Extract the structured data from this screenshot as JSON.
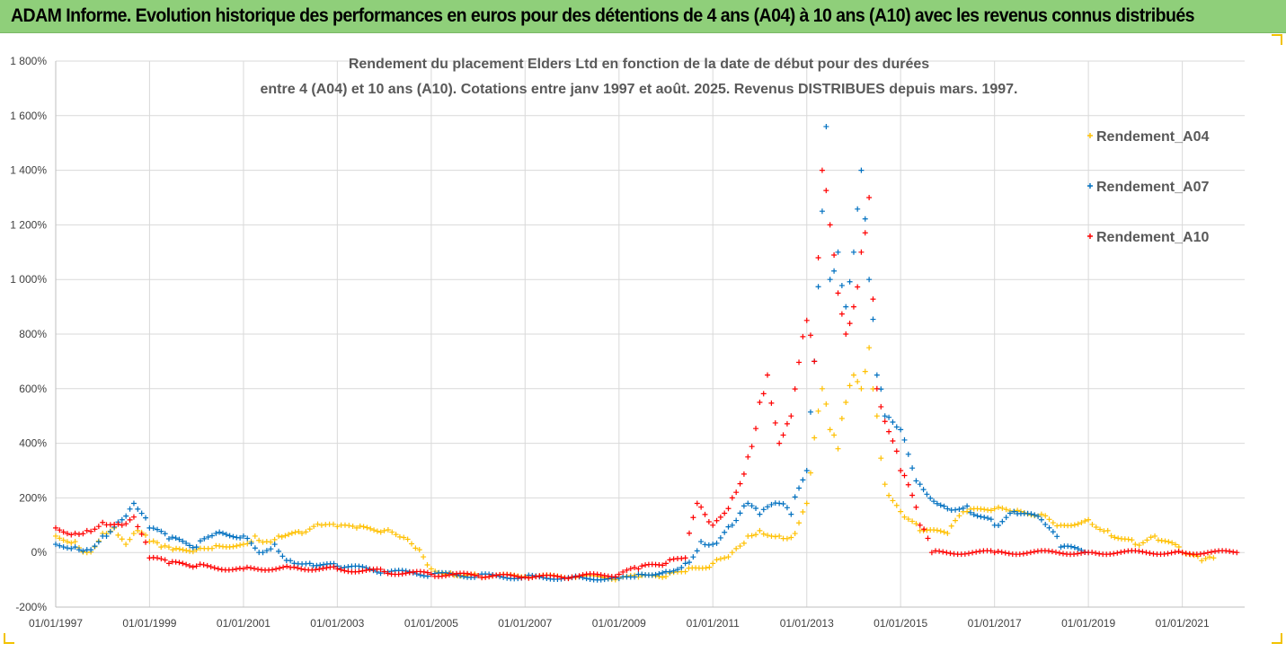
{
  "banner": {
    "title": "ADAM Informe. Evolution historique des performances en euros pour des détentions de 4 ans (A04) à 10 ans (A10) avec les revenus connus distribués"
  },
  "colors": {
    "banner_bg": "#8fcf7a",
    "A04": "#ffc000",
    "A07": "#0070c0",
    "A10": "#ff0000",
    "gridline": "#d9d9d9"
  },
  "chart_data": {
    "type": "scatter",
    "title_lines": [
      "Rendement du placement Elders Ltd en fonction de la date de début pour des durées",
      "entre 4 (A04) et 10 ans (A10). Cotations entre janv 1997 et août. 2025. Revenus DISTRIBUES depuis mars. 1997."
    ],
    "xlabel": "",
    "ylabel": "",
    "ylim": [
      -200,
      1800
    ],
    "yticks": [
      -200,
      0,
      200,
      400,
      600,
      800,
      1000,
      1200,
      1400,
      1600,
      1800
    ],
    "ytick_labels": [
      "-200%",
      "0%",
      "200%",
      "400%",
      "600%",
      "800%",
      "1 000%",
      "1 200%",
      "1 400%",
      "1 600%",
      "1 800%"
    ],
    "xlim": [
      "1997-01-01",
      "2022-05-01"
    ],
    "xticks": [
      "1997-01-01",
      "1999-01-01",
      "2001-01-01",
      "2003-01-01",
      "2005-01-01",
      "2007-01-01",
      "2009-01-01",
      "2011-01-01",
      "2013-01-01",
      "2015-01-01",
      "2017-01-01",
      "2019-01-01",
      "2021-01-01"
    ],
    "xtick_labels": [
      "01/01/1997",
      "01/01/1999",
      "01/01/2001",
      "01/01/2003",
      "01/01/2005",
      "01/01/2007",
      "01/01/2009",
      "01/01/2011",
      "01/01/2013",
      "01/01/2015",
      "01/01/2017",
      "01/01/2019",
      "01/01/2021"
    ],
    "grid": true,
    "legend_position": "right",
    "marker": "+",
    "series": [
      {
        "name": "Rendement_A04",
        "color": "#ffc000",
        "points": [
          [
            "1997-01-01",
            60
          ],
          [
            "1997-06-01",
            40
          ],
          [
            "1997-09-01",
            0
          ],
          [
            "1998-01-01",
            70
          ],
          [
            "1998-04-01",
            90
          ],
          [
            "1998-07-01",
            30
          ],
          [
            "1998-10-01",
            80
          ],
          [
            "1999-01-01",
            40
          ],
          [
            "1999-04-01",
            20
          ],
          [
            "1999-07-01",
            10
          ],
          [
            "2000-01-01",
            10
          ],
          [
            "2000-06-01",
            25
          ],
          [
            "2001-01-01",
            30
          ],
          [
            "2001-04-01",
            60
          ],
          [
            "2001-07-01",
            40
          ],
          [
            "2001-10-01",
            60
          ],
          [
            "2002-04-01",
            70
          ],
          [
            "2002-09-01",
            100
          ],
          [
            "2003-01-01",
            95
          ],
          [
            "2003-06-01",
            90
          ],
          [
            "2004-01-01",
            80
          ],
          [
            "2004-06-01",
            55
          ],
          [
            "2004-10-01",
            10
          ],
          [
            "2005-01-01",
            -60
          ],
          [
            "2005-06-01",
            -75
          ],
          [
            "2006-01-01",
            -85
          ],
          [
            "2007-01-01",
            -88
          ],
          [
            "2008-01-01",
            -90
          ],
          [
            "2009-01-01",
            -93
          ],
          [
            "2009-06-01",
            -90
          ],
          [
            "2010-01-01",
            -88
          ],
          [
            "2010-06-01",
            -70
          ],
          [
            "2011-01-01",
            -40
          ],
          [
            "2011-06-01",
            0
          ],
          [
            "2011-10-01",
            60
          ],
          [
            "2012-01-01",
            80
          ],
          [
            "2012-06-01",
            60
          ],
          [
            "2012-09-01",
            55
          ],
          [
            "2013-01-01",
            180
          ],
          [
            "2013-03-01",
            420
          ],
          [
            "2013-05-01",
            600
          ],
          [
            "2013-07-01",
            450
          ],
          [
            "2013-09-01",
            380
          ],
          [
            "2013-11-01",
            550
          ],
          [
            "2014-01-01",
            650
          ],
          [
            "2014-03-01",
            600
          ],
          [
            "2014-05-01",
            750
          ],
          [
            "2014-07-01",
            500
          ],
          [
            "2014-09-01",
            250
          ],
          [
            "2015-01-01",
            150
          ],
          [
            "2015-06-01",
            80
          ],
          [
            "2016-01-01",
            70
          ],
          [
            "2016-06-01",
            150
          ],
          [
            "2017-01-01",
            160
          ],
          [
            "2017-06-01",
            150
          ],
          [
            "2018-01-01",
            140
          ],
          [
            "2018-06-01",
            100
          ],
          [
            "2019-01-01",
            120
          ],
          [
            "2019-06-01",
            80
          ],
          [
            "2020-01-01",
            30
          ],
          [
            "2020-06-01",
            60
          ],
          [
            "2021-01-01",
            0
          ],
          [
            "2021-06-01",
            -30
          ],
          [
            "2021-09-01",
            -20
          ]
        ]
      },
      {
        "name": "Rendement_A07",
        "color": "#0070c0",
        "points": [
          [
            "1997-01-01",
            30
          ],
          [
            "1997-06-01",
            20
          ],
          [
            "1997-09-01",
            10
          ],
          [
            "1998-01-01",
            60
          ],
          [
            "1998-06-01",
            120
          ],
          [
            "1998-09-01",
            180
          ],
          [
            "1999-01-01",
            90
          ],
          [
            "1999-06-01",
            50
          ],
          [
            "2000-01-01",
            20
          ],
          [
            "2000-06-01",
            70
          ],
          [
            "2001-01-01",
            60
          ],
          [
            "2001-06-01",
            0
          ],
          [
            "2001-09-01",
            30
          ],
          [
            "2002-01-01",
            -30
          ],
          [
            "2002-06-01",
            -40
          ],
          [
            "2003-01-01",
            -50
          ],
          [
            "2004-01-01",
            -70
          ],
          [
            "2005-01-01",
            -80
          ],
          [
            "2006-01-01",
            -85
          ],
          [
            "2007-01-01",
            -90
          ],
          [
            "2008-01-01",
            -92
          ],
          [
            "2009-01-01",
            -95
          ],
          [
            "2009-06-01",
            -80
          ],
          [
            "2010-01-01",
            -70
          ],
          [
            "2010-06-01",
            -40
          ],
          [
            "2010-10-01",
            40
          ],
          [
            "2011-01-01",
            30
          ],
          [
            "2011-06-01",
            100
          ],
          [
            "2011-10-01",
            180
          ],
          [
            "2012-01-01",
            140
          ],
          [
            "2012-06-01",
            180
          ],
          [
            "2012-09-01",
            140
          ],
          [
            "2013-01-01",
            300
          ],
          [
            "2013-03-01",
            700
          ],
          [
            "2013-05-01",
            1250
          ],
          [
            "2013-06-01",
            1560
          ],
          [
            "2013-07-01",
            1000
          ],
          [
            "2013-09-01",
            1100
          ],
          [
            "2013-11-01",
            900
          ],
          [
            "2014-01-01",
            1100
          ],
          [
            "2014-03-01",
            1400
          ],
          [
            "2014-05-01",
            1000
          ],
          [
            "2014-07-01",
            650
          ],
          [
            "2014-09-01",
            500
          ],
          [
            "2015-01-01",
            450
          ],
          [
            "2015-06-01",
            250
          ],
          [
            "2016-01-01",
            160
          ],
          [
            "2016-06-01",
            170
          ],
          [
            "2017-01-01",
            100
          ],
          [
            "2017-06-01",
            150
          ],
          [
            "2018-01-01",
            120
          ],
          [
            "2018-06-01",
            20
          ],
          [
            "2019-01-01",
            0
          ]
        ]
      },
      {
        "name": "Rendement_A10",
        "color": "#ff0000",
        "points": [
          [
            "1997-01-01",
            90
          ],
          [
            "1997-06-01",
            70
          ],
          [
            "1997-09-01",
            80
          ],
          [
            "1998-01-01",
            110
          ],
          [
            "1998-06-01",
            100
          ],
          [
            "1998-09-01",
            130
          ],
          [
            "1999-01-01",
            -20
          ],
          [
            "1999-06-01",
            -40
          ],
          [
            "2000-01-01",
            -50
          ],
          [
            "2001-01-01",
            -60
          ],
          [
            "2002-01-01",
            -55
          ],
          [
            "2003-01-01",
            -60
          ],
          [
            "2004-01-01",
            -70
          ],
          [
            "2005-01-01",
            -80
          ],
          [
            "2006-01-01",
            -85
          ],
          [
            "2007-01-01",
            -90
          ],
          [
            "2008-01-01",
            -90
          ],
          [
            "2009-01-01",
            -80
          ],
          [
            "2009-06-01",
            -60
          ],
          [
            "2010-01-01",
            -40
          ],
          [
            "2010-06-01",
            -20
          ],
          [
            "2010-09-01",
            180
          ],
          [
            "2011-01-01",
            100
          ],
          [
            "2011-06-01",
            200
          ],
          [
            "2011-10-01",
            350
          ],
          [
            "2012-01-01",
            550
          ],
          [
            "2012-03-01",
            650
          ],
          [
            "2012-06-01",
            400
          ],
          [
            "2012-09-01",
            500
          ],
          [
            "2013-01-01",
            850
          ],
          [
            "2013-03-01",
            700
          ],
          [
            "2013-05-01",
            1400
          ],
          [
            "2013-07-01",
            1200
          ],
          [
            "2013-09-01",
            950
          ],
          [
            "2013-11-01",
            800
          ],
          [
            "2014-01-01",
            900
          ],
          [
            "2014-03-01",
            1100
          ],
          [
            "2014-05-01",
            1300
          ],
          [
            "2014-07-01",
            600
          ],
          [
            "2014-09-01",
            480
          ],
          [
            "2015-01-01",
            300
          ],
          [
            "2015-06-01",
            100
          ],
          [
            "2015-09-01",
            0
          ],
          [
            "2017-01-01",
            0
          ],
          [
            "2019-01-01",
            0
          ],
          [
            "2021-01-01",
            0
          ],
          [
            "2022-03-01",
            0
          ]
        ]
      }
    ]
  }
}
